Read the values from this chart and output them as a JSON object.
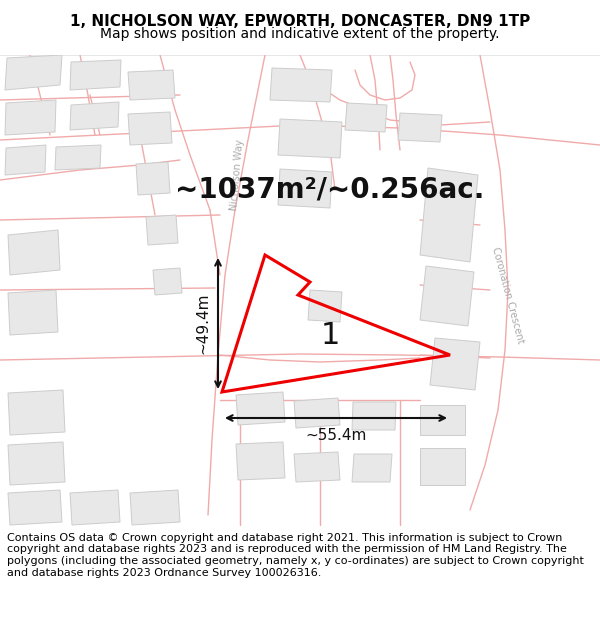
{
  "title_line1": "1, NICHOLSON WAY, EPWORTH, DONCASTER, DN9 1TP",
  "title_line2": "Map shows position and indicative extent of the property.",
  "footer_text": "Contains OS data © Crown copyright and database right 2021. This information is subject to Crown copyright and database rights 2023 and is reproduced with the permission of HM Land Registry. The polygons (including the associated geometry, namely x, y co-ordinates) are subject to Crown copyright and database rights 2023 Ordnance Survey 100026316.",
  "area_text": "~1037m²/~0.256ac.",
  "property_number": "1",
  "width_label": "~55.4m",
  "height_label": "~49.4m",
  "street_label1": "Nicholson Way",
  "street_label2": "Coronation Crescent",
  "map_bg": "#ffffff",
  "road_color": "#f0aaaa",
  "building_edge": "#cccccc",
  "building_fill": "#e8e8e8",
  "property_color": "#ee0000",
  "dim_color": "#111111",
  "title_fontsize": 11,
  "subtitle_fontsize": 10,
  "footer_fontsize": 8.0,
  "area_fontsize": 20,
  "number_fontsize": 22,
  "dim_fontsize": 11,
  "street_fontsize": 7
}
